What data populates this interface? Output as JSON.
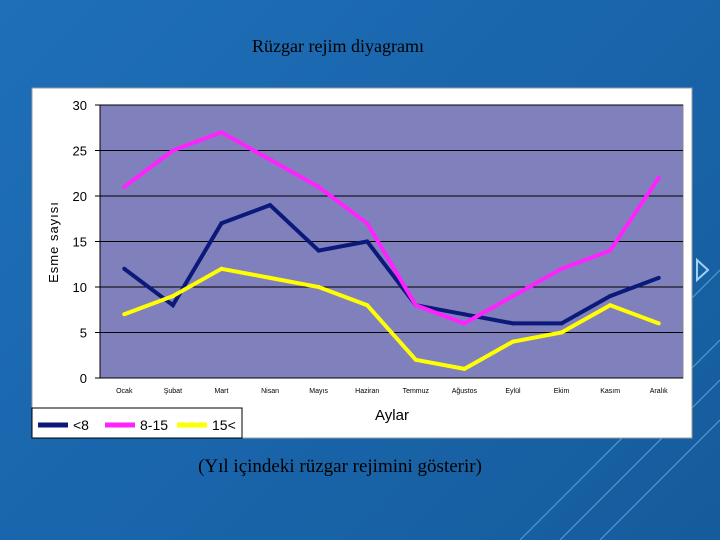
{
  "slide": {
    "caption": "(Yıl içindeki rüzgar rejimini gösterir)"
  },
  "chart_data": {
    "type": "line",
    "title": "Rüzgar rejim diyagramı",
    "xlabel": "Aylar",
    "ylabel": "Esme sayısı",
    "categories": [
      "Ocak",
      "Şubat",
      "Mart",
      "Nisan",
      "Mayıs",
      "Haziran",
      "Temmuz",
      "Ağustos",
      "Eylül",
      "Ekim",
      "Kasım",
      "Aralık"
    ],
    "ylim": [
      0,
      30
    ],
    "yticks": [
      0,
      5,
      10,
      15,
      20,
      25,
      30
    ],
    "grid": true,
    "legend_position": "bottom-left",
    "series": [
      {
        "name": "<8",
        "color": "#0b1a7a",
        "values": [
          12,
          8,
          17,
          19,
          14,
          15,
          8,
          7,
          6,
          6,
          9,
          11
        ]
      },
      {
        "name": "8-15",
        "color": "#ff22ff",
        "values": [
          21,
          25,
          27,
          24,
          21,
          17,
          8,
          6,
          9,
          12,
          14,
          22
        ]
      },
      {
        "name": "15<",
        "color": "#ffff00",
        "values": [
          7,
          9,
          12,
          11,
          10,
          8,
          2,
          1,
          4,
          5,
          8,
          6
        ]
      }
    ]
  }
}
